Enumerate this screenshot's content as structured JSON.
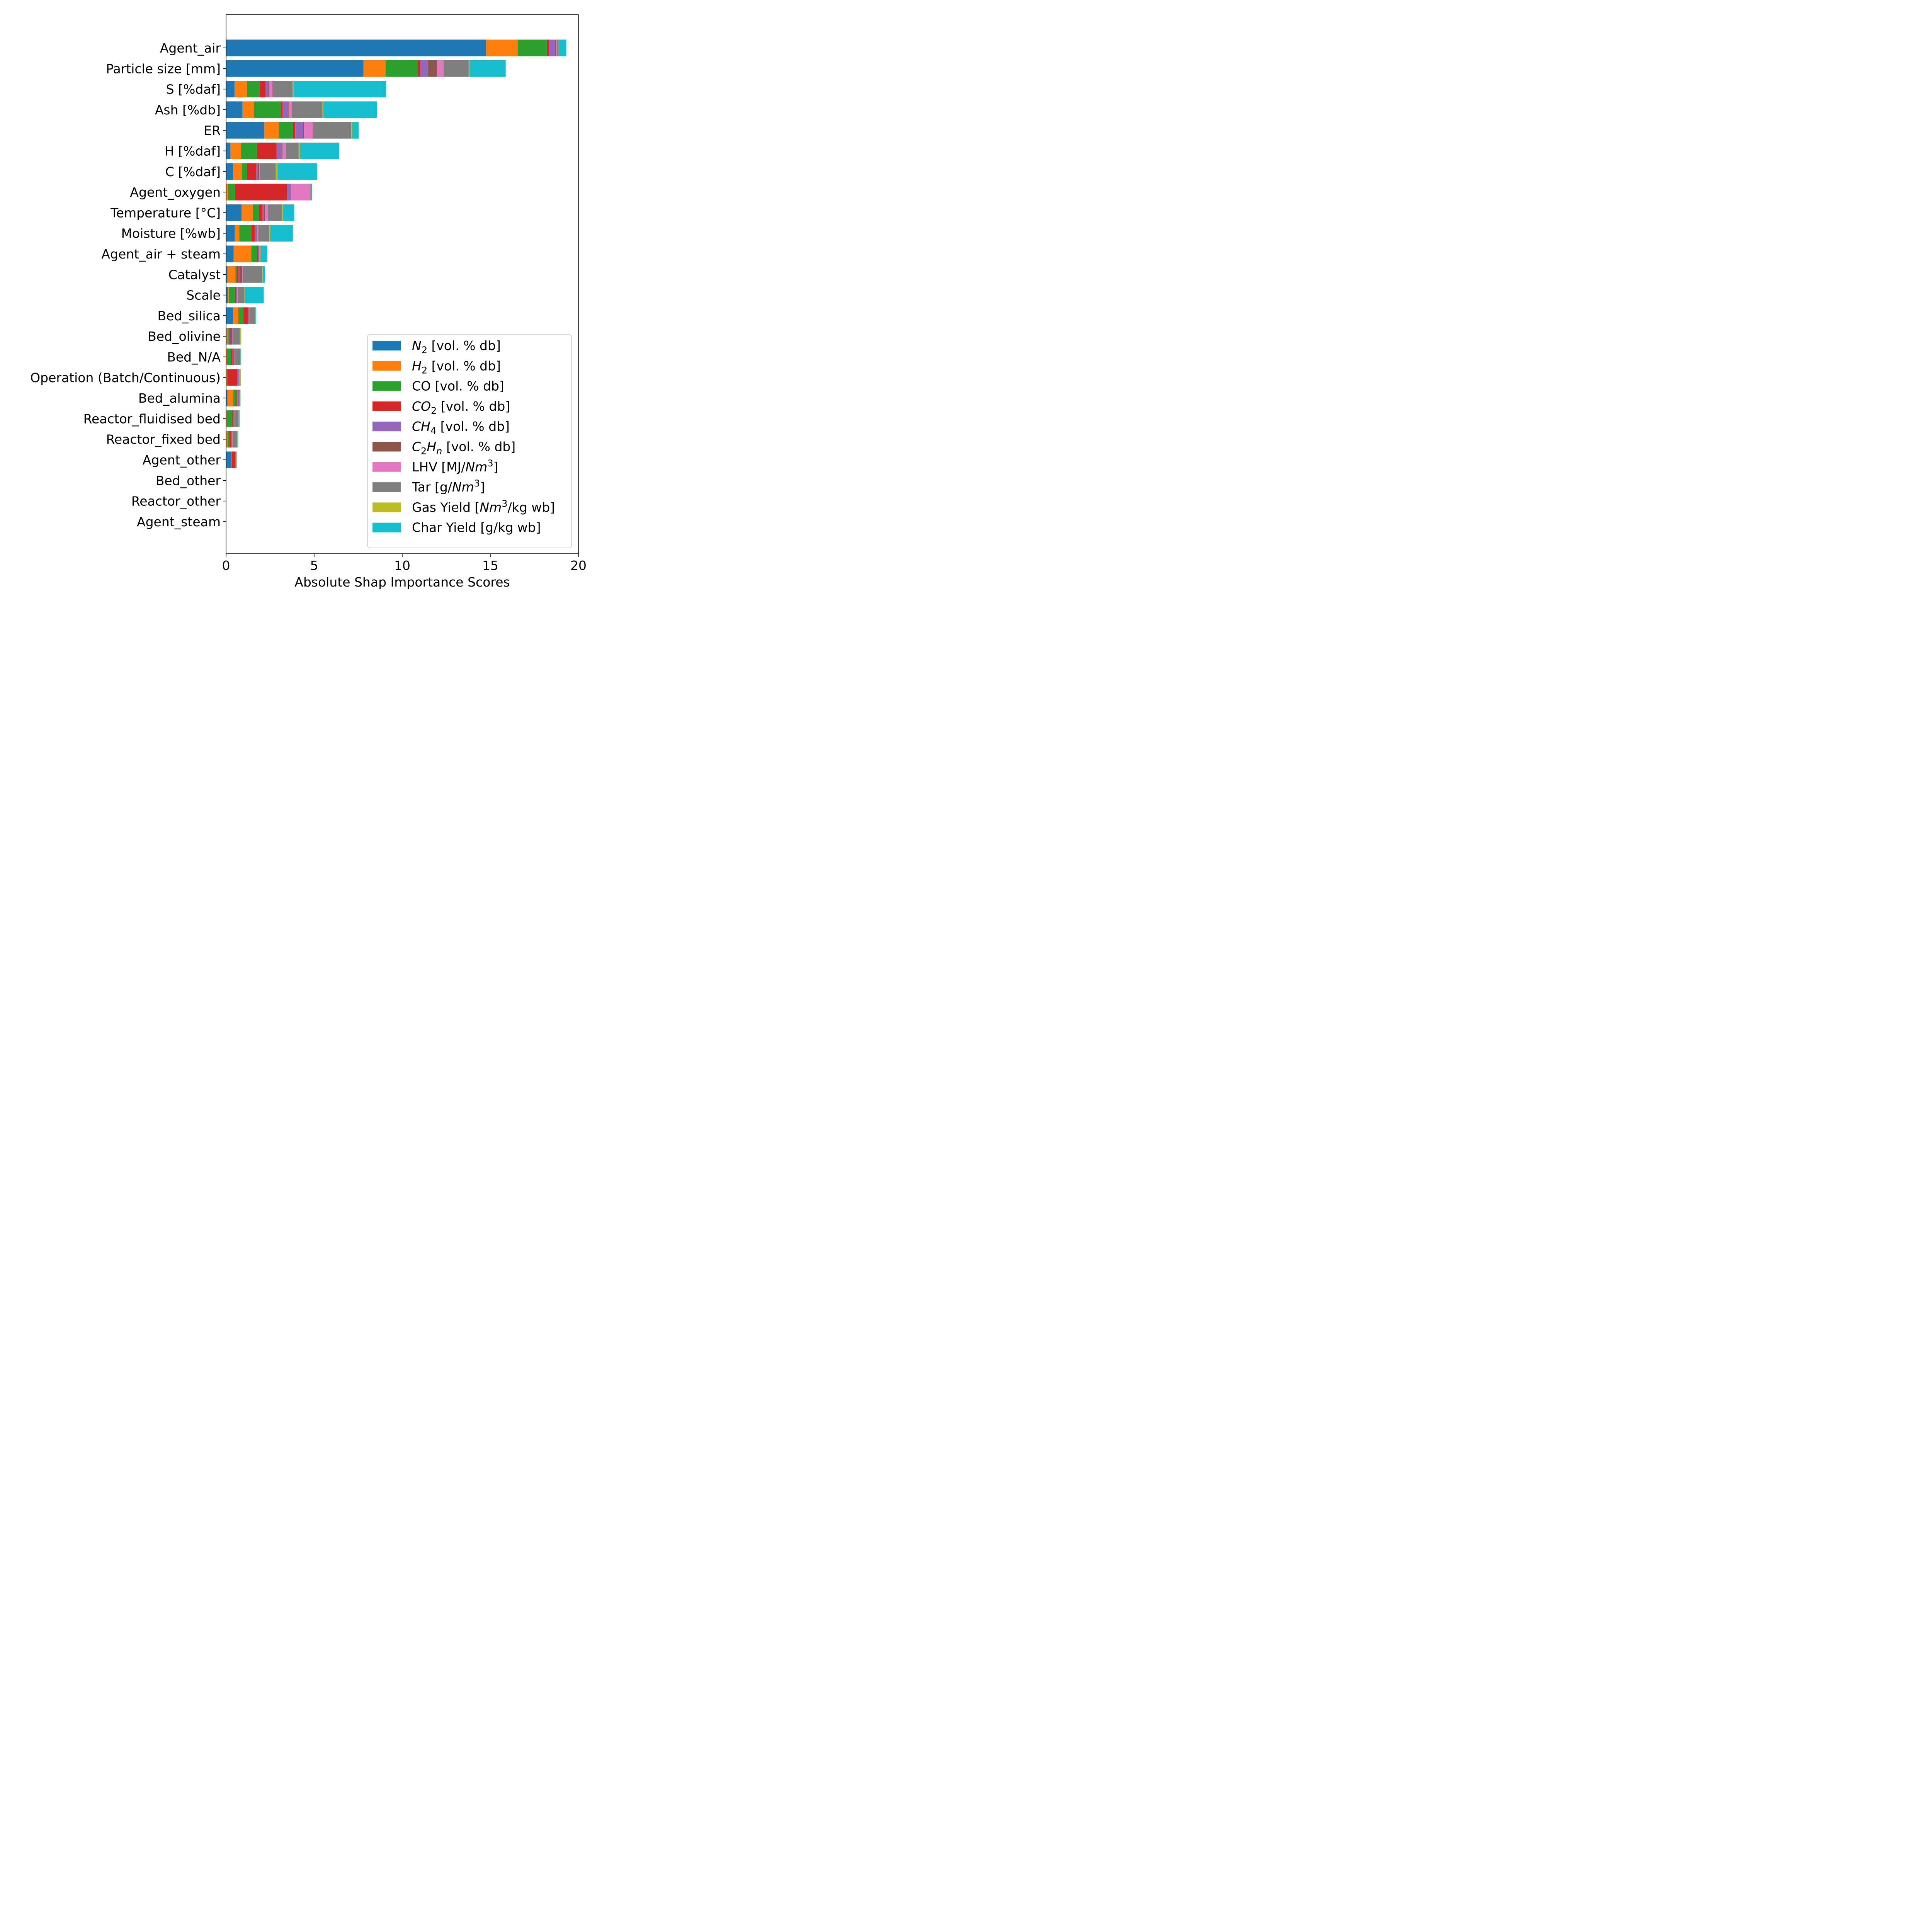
{
  "chart_data": {
    "type": "bar",
    "orientation": "horizontal",
    "stacked": true,
    "xlabel": "Absolute Shap Importance Scores",
    "ylabel": "",
    "title": "",
    "xlim": [
      0,
      20
    ],
    "xticks": [
      0,
      5,
      10,
      15,
      20
    ],
    "grid": false,
    "legend_position": "lower-right",
    "categories": [
      "Agent_air",
      "Particle size [mm]",
      "S [%daf]",
      "Ash [%db]",
      "ER",
      "H [%daf]",
      "C [%daf]",
      "Agent_oxygen",
      "Temperature [°C]",
      "Moisture [%wb]",
      "Agent_air + steam",
      "Catalyst",
      "Scale",
      "Bed_silica",
      "Bed_olivine",
      "Bed_N/A",
      "Operation (Batch/Continuous)",
      "Bed_alumina",
      "Reactor_fluidised bed",
      "Reactor_fixed bed",
      "Agent_other",
      "Bed_other",
      "Reactor_other",
      "Agent_steam"
    ],
    "series": [
      {
        "name": "N2 [vol. % db]",
        "color": "#1f77b4",
        "values": [
          14.75,
          7.8,
          0.48,
          0.93,
          2.15,
          0.25,
          0.4,
          0.02,
          0.88,
          0.5,
          0.43,
          0.08,
          0.1,
          0.4,
          0.03,
          0.02,
          0.02,
          0.08,
          0.03,
          0.02,
          0.28,
          0.02,
          0.0,
          0.0
        ]
      },
      {
        "name": "H2 [vol. % db]",
        "color": "#ff7f0e",
        "values": [
          1.8,
          1.25,
          0.7,
          0.67,
          0.83,
          0.6,
          0.5,
          0.1,
          0.65,
          0.25,
          1.0,
          0.45,
          0.05,
          0.3,
          0.06,
          0.03,
          0.02,
          0.33,
          0.03,
          0.06,
          0.03,
          0.0,
          0.0,
          0.0
        ]
      },
      {
        "name": "CO [vol. % db]",
        "color": "#2ca02c",
        "values": [
          1.65,
          1.85,
          0.72,
          1.5,
          0.8,
          0.9,
          0.3,
          0.38,
          0.32,
          0.68,
          0.33,
          0.07,
          0.35,
          0.28,
          0.06,
          0.22,
          0.03,
          0.18,
          0.28,
          0.1,
          0.0,
          0.0,
          0.0,
          0.0
        ]
      },
      {
        "name": "CO2 [vol. % db]",
        "color": "#d62728",
        "values": [
          0.12,
          0.12,
          0.35,
          0.1,
          0.15,
          1.12,
          0.5,
          2.95,
          0.22,
          0.2,
          0.05,
          0.1,
          0.05,
          0.25,
          0.05,
          0.1,
          0.55,
          0.05,
          0.05,
          0.12,
          0.2,
          0.0,
          0.0,
          0.0
        ]
      },
      {
        "name": "CH4 [vol. % db]",
        "color": "#9467bd",
        "values": [
          0.35,
          0.45,
          0.15,
          0.3,
          0.45,
          0.28,
          0.12,
          0.2,
          0.1,
          0.1,
          0.04,
          0.05,
          0.03,
          0.03,
          0.03,
          0.04,
          0.1,
          0.05,
          0.04,
          0.03,
          0.03,
          0.0,
          0.0,
          0.0
        ]
      },
      {
        "name": "C2Hn [vol. % db]",
        "color": "#8c564b",
        "values": [
          0.05,
          0.5,
          0.05,
          0.05,
          0.03,
          0.05,
          0.05,
          0.02,
          0.05,
          0.05,
          0.03,
          0.15,
          0.03,
          0.03,
          0.1,
          0.03,
          0.03,
          0.03,
          0.05,
          0.03,
          0.02,
          0.0,
          0.0,
          0.0
        ]
      },
      {
        "name": "LHV [MJ/Nm3]",
        "color": "#e377c2",
        "values": [
          0.05,
          0.38,
          0.18,
          0.2,
          0.5,
          0.2,
          0.05,
          1.1,
          0.17,
          0.05,
          0.03,
          0.05,
          0.05,
          0.03,
          0.03,
          0.03,
          0.03,
          0.03,
          0.03,
          0.03,
          0.03,
          0.0,
          0.0,
          0.0
        ]
      },
      {
        "name": "Tar [g/Nm3]",
        "color": "#7f7f7f",
        "values": [
          0.1,
          1.42,
          1.15,
          1.72,
          2.2,
          0.72,
          0.9,
          0.03,
          0.78,
          0.63,
          0.05,
          1.1,
          0.38,
          0.33,
          0.42,
          0.33,
          0.03,
          0.03,
          0.2,
          0.25,
          0.0,
          0.0,
          0.0,
          0.0
        ]
      },
      {
        "name": "Gas Yield [Nm3/kg wb]",
        "color": "#bcbd22",
        "values": [
          0.02,
          0.05,
          0.05,
          0.05,
          0.05,
          0.08,
          0.1,
          0.02,
          0.05,
          0.05,
          0.02,
          0.03,
          0.02,
          0.02,
          0.05,
          0.02,
          0.02,
          0.02,
          0.02,
          0.02,
          0.02,
          0.0,
          0.0,
          0.0
        ]
      },
      {
        "name": "Char Yield [g/kg wb]",
        "color": "#17becf",
        "values": [
          0.42,
          2.05,
          5.25,
          3.05,
          0.37,
          2.22,
          2.25,
          0.05,
          0.65,
          1.28,
          0.36,
          0.13,
          1.08,
          0.04,
          0.03,
          0.04,
          0.02,
          0.02,
          0.04,
          0.03,
          0.02,
          0.0,
          0.0,
          0.0
        ]
      }
    ]
  }
}
